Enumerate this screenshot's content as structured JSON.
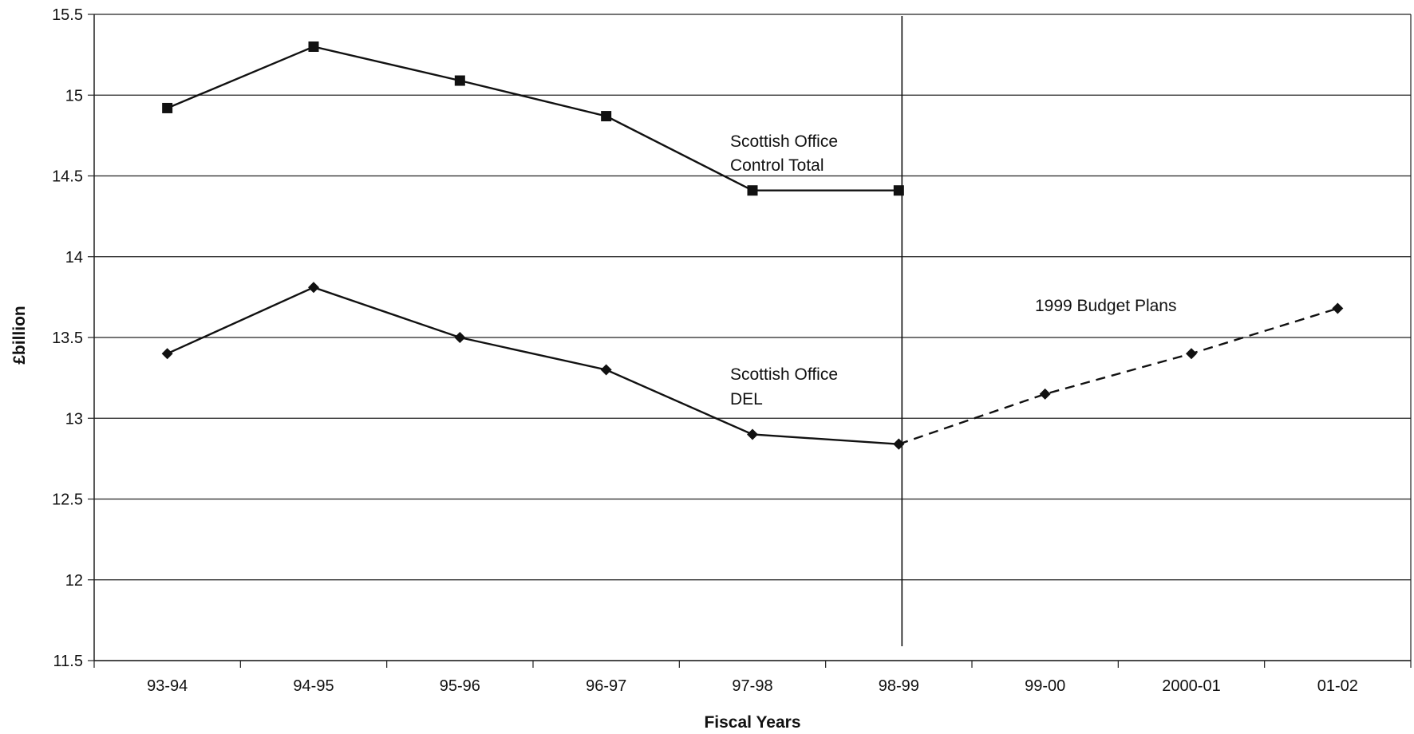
{
  "chart_data": {
    "type": "line",
    "xlabel": "Fiscal Years",
    "ylabel": "£billion",
    "categories": [
      "93-94",
      "94-95",
      "95-96",
      "96-97",
      "97-98",
      "98-99",
      "99-00",
      "2000-01",
      "01-02"
    ],
    "ylim": [
      11.5,
      15.5
    ],
    "yticks": [
      "11.5",
      "12",
      "12.5",
      "13",
      "13.5",
      "14",
      "14.5",
      "15",
      "15.5"
    ],
    "grid": true,
    "series": [
      {
        "name": "Scottish Office Control Total",
        "marker": "square",
        "line_style": "solid",
        "values": [
          14.92,
          15.3,
          15.09,
          14.87,
          14.41,
          14.41,
          null,
          null,
          null
        ]
      },
      {
        "name": "Scottish Office DEL",
        "marker": "diamond",
        "line_style": "solid",
        "values": [
          13.4,
          13.81,
          13.5,
          13.3,
          12.9,
          12.84,
          null,
          null,
          null
        ]
      },
      {
        "name": "1999 Budget Plans",
        "marker": "diamond",
        "line_style": "dashed",
        "values": [
          null,
          null,
          null,
          null,
          null,
          12.84,
          13.15,
          13.4,
          13.68
        ]
      }
    ],
    "divider_after_category": "98-99",
    "annotations": {
      "control_total_line1": "Scottish Office",
      "control_total_line2": "Control  Total",
      "del_line1": "Scottish Office",
      "del_line2": "DEL",
      "budget_plans": "1999 Budget Plans"
    }
  }
}
